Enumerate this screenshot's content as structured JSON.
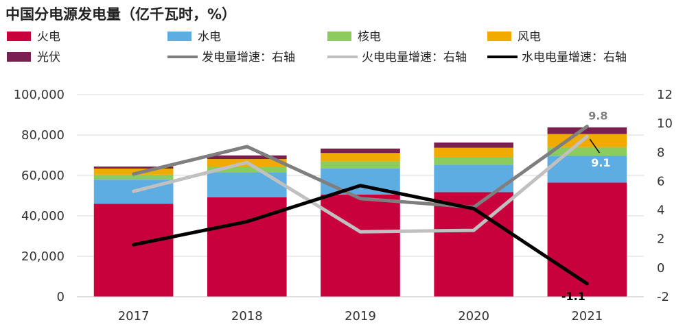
{
  "chart_data": {
    "type": "bar",
    "title": "中国分电源发电量（亿千瓦时，%）",
    "categories": [
      "2017",
      "2018",
      "2019",
      "2020",
      "2021"
    ],
    "stacked": true,
    "ylim": [
      0,
      100000
    ],
    "y_ticks": [
      "0",
      "20,000",
      "40,000",
      "60,000",
      "80,000",
      "100,000"
    ],
    "y2lim": [
      -2,
      12
    ],
    "y2_ticks": [
      "-2",
      "0",
      "2",
      "4",
      "6",
      "8",
      "10",
      "12"
    ],
    "grid": true,
    "legend_position": "top",
    "series": [
      {
        "name": "火电",
        "type": "bar",
        "axis": "left",
        "color": "#C8003C",
        "values": [
          46000,
          49200,
          50500,
          51700,
          56500
        ]
      },
      {
        "name": "水电",
        "type": "bar",
        "axis": "left",
        "color": "#5DADE2",
        "values": [
          11900,
          12300,
          13000,
          13600,
          13400
        ]
      },
      {
        "name": "核电",
        "type": "bar",
        "axis": "left",
        "color": "#8CCB5E",
        "values": [
          2500,
          2900,
          3500,
          3700,
          4100
        ]
      },
      {
        "name": "风电",
        "type": "bar",
        "axis": "left",
        "color": "#F0AA00",
        "values": [
          3000,
          3700,
          4100,
          4700,
          6500
        ]
      },
      {
        "name": "光伏",
        "type": "bar",
        "axis": "left",
        "color": "#7A2050",
        "values": [
          1000,
          1800,
          2200,
          2600,
          3300
        ]
      },
      {
        "name": "发电量增速：右轴",
        "type": "line",
        "axis": "right",
        "color": "#7F7F7F",
        "values": [
          6.5,
          8.4,
          4.8,
          4.2,
          9.8
        ]
      },
      {
        "name": "火电电量增速：右轴",
        "type": "line",
        "axis": "right",
        "color": "#C0C0C0",
        "values": [
          5.3,
          7.3,
          2.5,
          2.6,
          9.1
        ]
      },
      {
        "name": "水电电量增速：右轴",
        "type": "line",
        "axis": "right",
        "color": "#000000",
        "values": [
          1.6,
          3.2,
          5.7,
          4.1,
          -1.1
        ]
      }
    ],
    "annotations": [
      {
        "text": "9.8",
        "series": "发电量增速：右轴",
        "category": "2021",
        "color": "#7F7F7F"
      },
      {
        "text": "9.1",
        "series": "火电电量增速：右轴",
        "category": "2021",
        "color": "#ffffff"
      },
      {
        "text": "-1.1",
        "series": "水电电量增速：右轴",
        "category": "2021",
        "color": "#000000"
      }
    ]
  }
}
